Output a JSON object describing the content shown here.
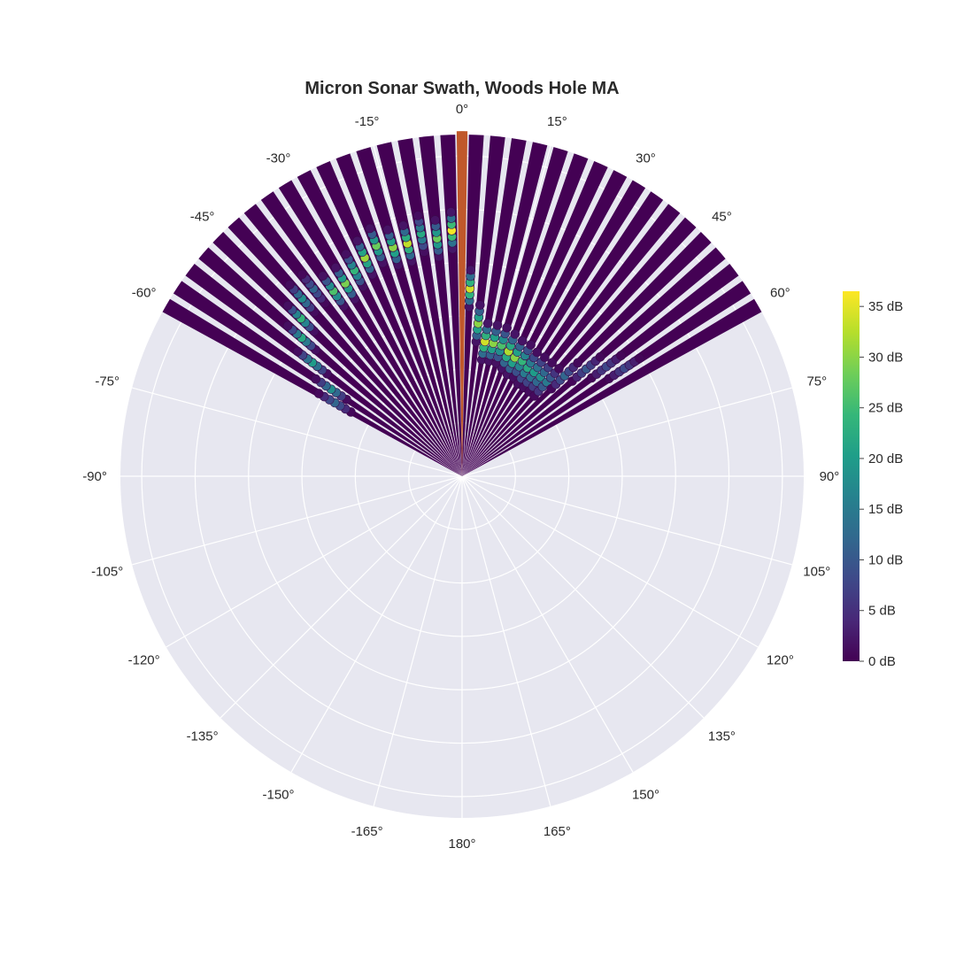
{
  "chart_data": {
    "type": "scatter",
    "projection": "polar",
    "title": "Micron Sonar Swath, Woods Hole MA",
    "angular_direction": "clockwise",
    "angular_zero": "top",
    "angular_ticks": [
      "0°",
      "15°",
      "30°",
      "45°",
      "60°",
      "75°",
      "90°",
      "105°",
      "120°",
      "135°",
      "150°",
      "165°",
      "180°",
      "-165°",
      "-150°",
      "-135°",
      "-120°",
      "-105°",
      "-90°",
      "-75°",
      "-60°",
      "-45°",
      "-30°",
      "-15°"
    ],
    "angular_tick_values": [
      0,
      15,
      30,
      45,
      60,
      75,
      90,
      105,
      120,
      135,
      150,
      165,
      180,
      -165,
      -150,
      -135,
      -120,
      -105,
      -90,
      -75,
      -60,
      -45,
      -30,
      -15
    ],
    "radial_range": [
      0,
      1
    ],
    "grid": true,
    "beam_angles_deg": [
      -60,
      -56.4,
      -52.8,
      -49.2,
      -45.6,
      -42,
      -38.4,
      -34.8,
      -31.2,
      -27.6,
      -24,
      -20.4,
      -16.8,
      -13.2,
      -9.6,
      -6,
      -2.4,
      0,
      2.4,
      6,
      9.6,
      13.2,
      16.8,
      20.4,
      24,
      27.6,
      31.2,
      34.8,
      38.4,
      42,
      45.6,
      49.2,
      52.8,
      56.4,
      60
    ],
    "intensity_unit": "dB",
    "highlighted_beam": {
      "angle_deg": 0,
      "color": "#c0582b"
    },
    "colorbar": {
      "colorscale": "Viridis",
      "range": [
        0,
        36.5
      ],
      "ticks": [
        "0 dB",
        "5 dB",
        "10 dB",
        "15 dB",
        "20 dB",
        "25 dB",
        "30 dB",
        "35 dB"
      ],
      "tick_values": [
        0,
        5,
        10,
        15,
        20,
        25,
        30,
        35
      ]
    },
    "returns": [
      {
        "beam_deg": -60,
        "range": 0.43,
        "db": 12
      },
      {
        "beam_deg": -56.4,
        "range": 0.46,
        "db": 18
      },
      {
        "beam_deg": -52.8,
        "range": 0.55,
        "db": 20
      },
      {
        "beam_deg": -49.2,
        "range": 0.62,
        "db": 22
      },
      {
        "beam_deg": -45.6,
        "range": 0.66,
        "db": 24
      },
      {
        "beam_deg": -42,
        "range": 0.7,
        "db": 18
      },
      {
        "beam_deg": -38.4,
        "range": 0.7,
        "db": 12
      },
      {
        "beam_deg": -34.8,
        "range": 0.66,
        "db": 26
      },
      {
        "beam_deg": -31.2,
        "range": 0.66,
        "db": 29
      },
      {
        "beam_deg": -27.6,
        "range": 0.68,
        "db": 24
      },
      {
        "beam_deg": -24,
        "range": 0.7,
        "db": 31
      },
      {
        "beam_deg": -20.4,
        "range": 0.72,
        "db": 28
      },
      {
        "beam_deg": -16.8,
        "range": 0.7,
        "db": 30
      },
      {
        "beam_deg": -13.2,
        "range": 0.7,
        "db": 33
      },
      {
        "beam_deg": -9.6,
        "range": 0.72,
        "db": 22
      },
      {
        "beam_deg": -6,
        "range": 0.7,
        "db": 28
      },
      {
        "beam_deg": -2.4,
        "range": 0.72,
        "db": 36
      },
      {
        "beam_deg": 2.4,
        "range": 0.55,
        "db": 34
      },
      {
        "beam_deg": 6,
        "range": 0.45,
        "db": 30
      },
      {
        "beam_deg": 9.6,
        "range": 0.4,
        "db": 34
      },
      {
        "beam_deg": 13.2,
        "range": 0.4,
        "db": 30
      },
      {
        "beam_deg": 16.8,
        "range": 0.4,
        "db": 26
      },
      {
        "beam_deg": 20.4,
        "range": 0.39,
        "db": 32
      },
      {
        "beam_deg": 24,
        "range": 0.38,
        "db": 30
      },
      {
        "beam_deg": 27.6,
        "range": 0.38,
        "db": 24
      },
      {
        "beam_deg": 31.2,
        "range": 0.37,
        "db": 22
      },
      {
        "beam_deg": 34.8,
        "range": 0.37,
        "db": 20
      },
      {
        "beam_deg": 38.4,
        "range": 0.37,
        "db": 18
      },
      {
        "beam_deg": 42,
        "range": 0.37,
        "db": 15
      },
      {
        "beam_deg": 45.6,
        "range": 0.42,
        "db": 12
      },
      {
        "beam_deg": 49.2,
        "range": 0.48,
        "db": 10
      },
      {
        "beam_deg": 52.8,
        "range": 0.53,
        "db": 8
      },
      {
        "beam_deg": 56.4,
        "range": 0.57,
        "db": 8
      }
    ]
  }
}
